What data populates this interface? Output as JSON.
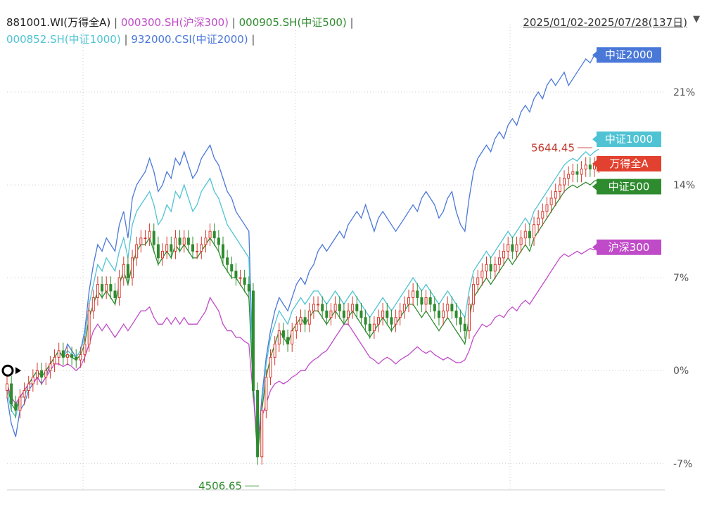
{
  "legend": {
    "row1": [
      {
        "label": "881001.WI(万得全A)",
        "color": "#222222"
      },
      {
        "label": "000300.SH(沪深300)",
        "color": "#c04bc9"
      },
      {
        "label": "000905.SH(中证500)",
        "color": "#2e8b2e"
      }
    ],
    "row2": [
      {
        "label": "000852.SH(中证1000)",
        "color": "#4fc3d4"
      },
      {
        "label": "932000.CSI(中证2000)",
        "color": "#4a78d8"
      }
    ],
    "separator": "|"
  },
  "header": {
    "date_range": "2025/01/02-2025/07/28(137日)",
    "dropdown_icon": "triangle-down-icon"
  },
  "chart_data": {
    "type": "line",
    "x_range": [
      "2025/01/02",
      "2025/07/28"
    ],
    "trading_days": 137,
    "y_unit": "%",
    "y_ticks": [
      "21%",
      "14%",
      "7%",
      "0%",
      "-7%"
    ],
    "y_tick_values": [
      21,
      14,
      7,
      0,
      -7
    ],
    "ylim": [
      -9,
      24.5
    ],
    "grid": "dotted",
    "series": [
      {
        "name": "中证2000",
        "color": "#4a78d8",
        "type": "line",
        "values": [
          -2,
          -4,
          -5,
          -3,
          -2.5,
          -1.5,
          -1,
          -0.5,
          -1,
          -0.5,
          0.5,
          1,
          1.5,
          1,
          2,
          1.5,
          1,
          1.5,
          3,
          6,
          8,
          9.5,
          9,
          10,
          9.5,
          9,
          11,
          12,
          10,
          13,
          14,
          14.5,
          15,
          16,
          15,
          13.5,
          14,
          15,
          14.5,
          16,
          15.5,
          16.5,
          15.5,
          14.5,
          15,
          16,
          16.5,
          17,
          16,
          15.5,
          14.5,
          13.5,
          13,
          12,
          11.5,
          11,
          10.5,
          -1,
          -6,
          -2,
          1,
          3,
          4.5,
          5.5,
          5,
          4.5,
          5.5,
          6.5,
          7,
          6.5,
          7.5,
          8,
          9,
          9.5,
          9,
          9.5,
          10,
          10.5,
          10,
          11,
          11.5,
          12,
          11.5,
          12.5,
          11.5,
          10.5,
          11.5,
          12,
          11.5,
          11,
          10.5,
          11,
          11.5,
          12,
          12.5,
          12,
          13,
          13.5,
          13,
          12.5,
          11.5,
          12,
          13,
          13.5,
          12,
          11,
          10.5,
          13,
          15,
          16,
          16.5,
          17,
          16.5,
          17.5,
          18,
          17.5,
          18.5,
          19,
          18.5,
          19.5,
          20,
          19.5,
          20.5,
          21,
          20.5,
          21.5,
          22,
          21.5,
          22,
          22.5,
          21.5,
          22,
          22.5,
          23,
          23.5,
          23.2,
          23.8
        ]
      },
      {
        "name": "中证1000",
        "color": "#4fc3d4",
        "type": "line",
        "values": [
          -1.5,
          -3,
          -3.5,
          -2,
          -2,
          -1,
          -0.5,
          0,
          -0.5,
          0,
          0.5,
          1,
          1.5,
          1,
          1.5,
          1.2,
          1,
          1.5,
          2.5,
          5,
          6.5,
          8,
          7.5,
          8.5,
          8,
          7.5,
          9,
          10,
          8.5,
          11,
          12,
          12.5,
          13,
          13.5,
          12.5,
          11,
          11.5,
          12.5,
          12,
          13.5,
          13,
          14,
          13,
          12,
          12.5,
          13.5,
          14,
          14.5,
          13.5,
          13,
          12,
          11,
          10.5,
          10,
          9.5,
          9,
          8.5,
          -1.5,
          -6,
          -2.5,
          0.5,
          2.5,
          3.5,
          4.5,
          4,
          3.5,
          4.5,
          5,
          5.5,
          5,
          5.5,
          6,
          6,
          5.5,
          5,
          5.5,
          6,
          5.5,
          5,
          5.5,
          6,
          5.5,
          5,
          4.5,
          4,
          4.5,
          5,
          5.5,
          5,
          4.5,
          5,
          5.5,
          6,
          6.5,
          7,
          6.5,
          6,
          6.5,
          6,
          5.5,
          5,
          5.5,
          6,
          5.5,
          5,
          4.5,
          4,
          6,
          7.5,
          8,
          8.5,
          9,
          8.5,
          9,
          9.5,
          10,
          10.5,
          10,
          10.5,
          11,
          11.5,
          11,
          12,
          12.5,
          13,
          13.5,
          14,
          14.5,
          15,
          15.5,
          15.8,
          16,
          15.8,
          16.2,
          16.5,
          16.2,
          16.5,
          16.7
        ]
      },
      {
        "name": "中证500",
        "color": "#2e8b2e",
        "type": "line",
        "values": [
          -1,
          -2.5,
          -3,
          -2,
          -1.5,
          -1,
          -0.5,
          0,
          -0.5,
          0,
          0.5,
          1,
          1.5,
          1,
          1.2,
          1,
          0.8,
          1.2,
          2,
          4,
          5,
          6,
          5.5,
          6,
          5.5,
          5,
          6.5,
          7.5,
          6.5,
          8,
          9,
          9.5,
          9.5,
          10,
          9,
          8,
          8.5,
          9,
          8.5,
          9.5,
          9,
          9.5,
          9,
          8.5,
          8.5,
          9,
          9.5,
          10,
          9.5,
          9,
          8,
          7.5,
          7,
          7,
          6.5,
          6,
          5.5,
          -1.5,
          -6.5,
          -3,
          -0.5,
          1,
          2,
          3,
          2.5,
          2,
          3,
          3.5,
          4,
          3.5,
          4,
          4.5,
          4.5,
          4,
          3.5,
          4,
          4.5,
          4,
          3.5,
          4,
          4.5,
          4,
          3.5,
          3,
          2.5,
          3,
          3.5,
          4,
          3.5,
          3,
          3.5,
          4,
          4.5,
          5,
          5,
          4.5,
          4,
          4.5,
          4,
          3.5,
          3,
          3.5,
          4,
          3.5,
          3,
          2.5,
          2,
          4,
          5.5,
          6,
          6.5,
          7,
          6.5,
          7,
          7.5,
          8,
          8.5,
          8,
          8.5,
          9,
          9.5,
          9,
          10,
          10.5,
          11,
          11.5,
          12,
          12.5,
          13,
          13.5,
          13.8,
          14,
          13.8,
          14,
          14.2,
          14,
          14.3,
          14.4
        ]
      },
      {
        "name": "沪深300",
        "color": "#c04bc9",
        "type": "line",
        "values": [
          -1,
          -2,
          -2.5,
          -2,
          -1.5,
          -1,
          -1,
          -0.5,
          -1,
          -0.5,
          0,
          0.5,
          0.5,
          0.3,
          0.5,
          0.3,
          0,
          0.3,
          1,
          2,
          3,
          3.5,
          3,
          3.5,
          3,
          2.5,
          3,
          3.5,
          3,
          3.5,
          4,
          4.5,
          4.5,
          4.8,
          4,
          3.5,
          3.5,
          4,
          3.5,
          4,
          3.5,
          4,
          3.5,
          3.5,
          3.5,
          4,
          4.5,
          5.5,
          5,
          4.5,
          3.5,
          3,
          3,
          2.5,
          2.5,
          2.2,
          2,
          -2,
          -5,
          -3.5,
          -2.5,
          -1.5,
          -1,
          -0.8,
          -1,
          -0.8,
          -0.5,
          -0.3,
          0,
          0,
          0.5,
          0.8,
          1,
          1.3,
          1.5,
          2,
          2.5,
          3,
          3.5,
          3.5,
          3,
          2.5,
          2,
          1.5,
          1,
          0.8,
          0.5,
          0.8,
          1,
          0.8,
          0.5,
          0.8,
          1,
          1.2,
          1.5,
          1.8,
          1.5,
          1.3,
          1.5,
          1.2,
          1,
          0.8,
          1,
          0.8,
          0.6,
          0.6,
          0.8,
          1.5,
          2.5,
          3,
          3.5,
          3.3,
          3.5,
          4,
          4.2,
          4,
          4.5,
          4.8,
          4.5,
          5,
          5.3,
          5,
          5.5,
          6,
          6.5,
          7,
          7.5,
          8,
          8.5,
          8.8,
          8.6,
          8.8,
          9,
          8.8,
          9,
          9.2,
          9.1,
          9.3
        ]
      },
      {
        "name": "万得全A",
        "color": "#222222",
        "type": "candlestick",
        "close_values": [
          -1,
          -2.5,
          -3,
          -2,
          -1.5,
          -1,
          -0.5,
          0,
          -0.5,
          0,
          0.5,
          1,
          1.5,
          1,
          1.2,
          1,
          0.8,
          1.2,
          2,
          4.5,
          5.5,
          6.5,
          6,
          6.5,
          6,
          5.5,
          7,
          8,
          7,
          8.5,
          9.5,
          10,
          10,
          10.5,
          9.5,
          8.5,
          9,
          9.5,
          9,
          10,
          9.5,
          10,
          9.5,
          9,
          9,
          9.5,
          10,
          10.5,
          10,
          9.5,
          8.5,
          8,
          7.5,
          7,
          7,
          6.5,
          6,
          -1.5,
          -6.5,
          -3,
          -0.5,
          1,
          2,
          3,
          2.5,
          2,
          3,
          3.5,
          4,
          3.5,
          4.5,
          5,
          5,
          4.5,
          4,
          4.5,
          5,
          4.5,
          4,
          4.5,
          5,
          4.5,
          4,
          3.5,
          3,
          3.5,
          4,
          4.5,
          4,
          3.5,
          4,
          4.5,
          5,
          5.5,
          6,
          5.5,
          5,
          5.5,
          5,
          4.5,
          4,
          4.5,
          5,
          4.5,
          4,
          3.5,
          3,
          5,
          6.5,
          7,
          7.5,
          8,
          7.5,
          8,
          8.5,
          9,
          9.5,
          9,
          9.5,
          10,
          10.5,
          10,
          11,
          11.5,
          12,
          12.5,
          13,
          13.5,
          14,
          14.5,
          14.8,
          15,
          14.8,
          15.2,
          15.5,
          15.2,
          15.5,
          15.6
        ]
      }
    ],
    "series_tags": [
      {
        "label": "中证2000",
        "color": "#4a78d8",
        "value": 23.8
      },
      {
        "label": "中证1000",
        "color": "#4fc3d4",
        "value": 16.7
      },
      {
        "label": "万得全A",
        "color": "#e2412f",
        "value": 15.6
      },
      {
        "label": "中证500",
        "color": "#2e8b2e",
        "value": 14.4
      },
      {
        "label": "沪深300",
        "color": "#c04bc9",
        "value": 9.3
      }
    ],
    "annotations": [
      {
        "label": "5644.45",
        "color": "#c0392b",
        "kind": "max",
        "index": 136
      },
      {
        "label": "4506.65",
        "color": "#2e8b2e",
        "kind": "min",
        "index": 58
      }
    ]
  }
}
